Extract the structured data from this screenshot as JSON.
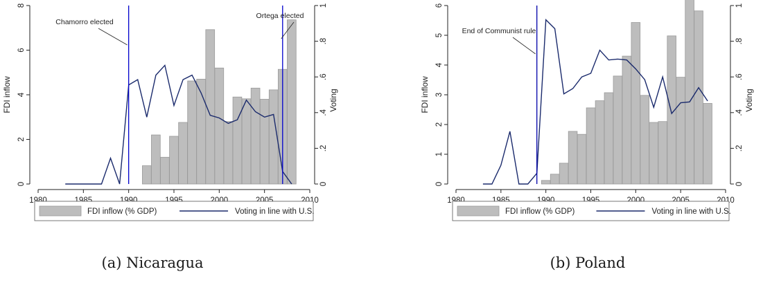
{
  "chart_data": [
    {
      "type": "bar",
      "caption": "(a) Nicaragua",
      "xlim": [
        1980,
        2010
      ],
      "xticks": [
        1980,
        1985,
        1990,
        1995,
        2000,
        2005,
        2010
      ],
      "ylabel": "FDI inflow",
      "ylim": [
        0,
        8
      ],
      "yticks": [
        0,
        2,
        4,
        6,
        8
      ],
      "y2label": "Voting",
      "y2lim": [
        0,
        1
      ],
      "y2ticks": [
        0,
        0.2,
        0.4,
        0.6,
        0.8,
        1
      ],
      "y2ticklabels": [
        "0",
        ".2",
        ".4",
        ".6",
        ".8",
        "1"
      ],
      "series": [
        {
          "name": "FDI inflow (% GDP)",
          "type": "bar",
          "x": [
            1992,
            1993,
            1994,
            1995,
            1996,
            1997,
            1998,
            1999,
            2000,
            2001,
            2002,
            2003,
            2004,
            2005,
            2006,
            2007,
            2008
          ],
          "values": [
            0.82,
            2.2,
            1.2,
            2.14,
            2.76,
            4.62,
            4.7,
            6.92,
            5.2,
            2.8,
            3.9,
            3.82,
            4.3,
            3.8,
            4.22,
            5.14,
            7.36
          ]
        },
        {
          "name": "Voting in line with U.S.",
          "type": "line",
          "x": [
            1983,
            1984,
            1985,
            1986,
            1987,
            1988,
            1989,
            1990,
            1991,
            1992,
            1993,
            1994,
            1995,
            1996,
            1997,
            1998,
            1999,
            2000,
            2001,
            2002,
            2003,
            2004,
            2005,
            2006,
            2007,
            2008
          ],
          "values": [
            0,
            0,
            0,
            0,
            0,
            0.145,
            0,
            0.555,
            0.585,
            0.375,
            0.61,
            0.665,
            0.44,
            0.585,
            0.61,
            0.51,
            0.385,
            0.37,
            0.34,
            0.36,
            0.47,
            0.405,
            0.375,
            0.39,
            0.07,
            0
          ]
        }
      ],
      "annotations": [
        {
          "x": 1990,
          "label": "Chamorro elected"
        },
        {
          "x": 2007,
          "label": "Ortega elected"
        }
      ],
      "legend": "bottom",
      "grid": false
    },
    {
      "type": "bar",
      "caption": "(b) Poland",
      "xlim": [
        1980,
        2010
      ],
      "xticks": [
        1980,
        1985,
        1990,
        1995,
        2000,
        2005,
        2010
      ],
      "ylabel": "FDI inflow",
      "ylim": [
        0,
        6
      ],
      "yticks": [
        0,
        1,
        2,
        3,
        4,
        5,
        6
      ],
      "y2label": "Voting",
      "y2lim": [
        0,
        1
      ],
      "y2ticks": [
        0,
        0.2,
        0.4,
        0.6,
        0.8,
        1
      ],
      "y2ticklabels": [
        "0",
        ".2",
        ".4",
        ".6",
        ".8",
        "1"
      ],
      "series": [
        {
          "name": "FDI inflow (% GDP)",
          "type": "bar",
          "x": [
            1990,
            1991,
            1992,
            1993,
            1994,
            1995,
            1996,
            1997,
            1998,
            1999,
            2000,
            2001,
            2002,
            2003,
            2004,
            2005,
            2006,
            2007,
            2008
          ],
          "values": [
            0.12,
            0.33,
            0.7,
            1.77,
            1.67,
            2.56,
            2.8,
            3.07,
            3.63,
            4.3,
            5.43,
            2.98,
            2.07,
            2.1,
            4.98,
            3.59,
            6.24,
            5.82,
            2.71
          ]
        },
        {
          "name": "Voting in line with U.S.",
          "type": "line",
          "x": [
            1983,
            1984,
            1985,
            1986,
            1987,
            1988,
            1989,
            1990,
            1991,
            1992,
            1993,
            1994,
            1995,
            1996,
            1997,
            1998,
            1999,
            2000,
            2001,
            2002,
            2003,
            2004,
            2005,
            2006,
            2007,
            2008
          ],
          "values": [
            0,
            0,
            0.105,
            0.295,
            0,
            0,
            0.06,
            0.92,
            0.87,
            0.505,
            0.535,
            0.6,
            0.62,
            0.75,
            0.695,
            0.7,
            0.695,
            0.645,
            0.585,
            0.43,
            0.6,
            0.395,
            0.455,
            0.46,
            0.54,
            0.465
          ]
        }
      ],
      "annotations": [
        {
          "x": 1989,
          "label": "End of Communist rule"
        }
      ],
      "legend": "bottom",
      "grid": false
    }
  ]
}
